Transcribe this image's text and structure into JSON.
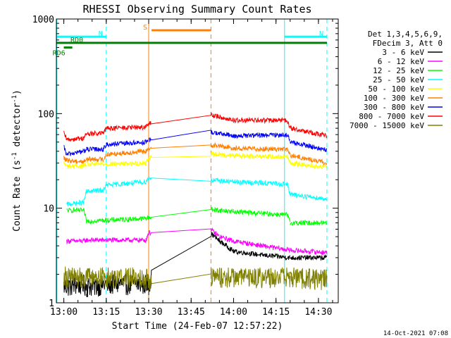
{
  "chart_data": {
    "type": "line",
    "title": "RHESSI Observing Summary Count Rates",
    "xlabel": "Start Time (24-Feb-07 12:57:22)",
    "ylabel": "Count Rate (s⁻¹ detector⁻¹)",
    "y_scale": "log",
    "ylim": [
      1,
      1000
    ],
    "xlim": [
      "12:57:22",
      "14:37:00"
    ],
    "x_ticks": [
      "13:00",
      "13:15",
      "13:30",
      "13:45",
      "14:00",
      "14:15",
      "14:30"
    ],
    "y_ticks": [
      "1",
      "10",
      "100",
      "1000"
    ],
    "grid": false,
    "legend_position": "right",
    "legend_header": [
      "Det 1,3,4,5,6,9,",
      "FDecim 3, Att 0"
    ],
    "series": [
      {
        "name": "3 - 6 keV",
        "color": "#000000",
        "points": [
          [
            "13:00",
            1.5
          ],
          [
            "13:07",
            1.6
          ],
          [
            "13:08",
            1.5
          ],
          [
            "13:17",
            1.6
          ],
          [
            "13:30",
            1.6
          ],
          [
            "13:50",
            6
          ],
          [
            "13:55",
            4.5
          ],
          [
            "14:00",
            3.5
          ],
          [
            "14:10",
            3.2
          ],
          [
            "14:20",
            3.0
          ],
          [
            "14:33",
            3.0
          ]
        ]
      },
      {
        "name": "6 - 12 keV",
        "color": "#ff00ff",
        "points": [
          [
            "13:01",
            4.5
          ],
          [
            "13:07",
            4.5
          ],
          [
            "13:08",
            4.6
          ],
          [
            "13:29",
            4.6
          ],
          [
            "13:30",
            5.5
          ],
          [
            "13:50",
            6.5
          ],
          [
            "13:55",
            5.0
          ],
          [
            "14:00",
            4.5
          ],
          [
            "14:10",
            4.0
          ],
          [
            "14:20",
            3.6
          ],
          [
            "14:33",
            3.4
          ]
        ]
      },
      {
        "name": "12 - 25 keV",
        "color": "#00ff00",
        "points": [
          [
            "13:01",
            9.5
          ],
          [
            "13:07",
            9.5
          ],
          [
            "13:08",
            7.3
          ],
          [
            "13:29",
            7.8
          ],
          [
            "13:30",
            8.0
          ],
          [
            "13:50",
            9.8
          ],
          [
            "14:00",
            9.2
          ],
          [
            "14:10",
            8.8
          ],
          [
            "14:19",
            8.5
          ],
          [
            "14:20",
            7.0
          ],
          [
            "14:33",
            7.0
          ]
        ]
      },
      {
        "name": "25 - 50 keV",
        "color": "#00ffff",
        "points": [
          [
            "13:01",
            11
          ],
          [
            "13:07",
            11.5
          ],
          [
            "13:08",
            15
          ],
          [
            "13:14",
            15.5
          ],
          [
            "13:15",
            17.5
          ],
          [
            "13:29",
            19
          ],
          [
            "13:30",
            21
          ],
          [
            "13:50",
            20
          ],
          [
            "14:00",
            19
          ],
          [
            "14:19",
            18
          ],
          [
            "14:20",
            14
          ],
          [
            "14:33",
            12.5
          ]
        ]
      },
      {
        "name": "50 - 100 keV",
        "color": "#ffff00",
        "points": [
          [
            "13:00",
            30
          ],
          [
            "13:01",
            28
          ],
          [
            "13:07",
            28
          ],
          [
            "13:08",
            29
          ],
          [
            "13:29",
            30
          ],
          [
            "13:30",
            34
          ],
          [
            "13:50",
            38
          ],
          [
            "14:00",
            36
          ],
          [
            "14:19",
            35
          ],
          [
            "14:20",
            30
          ],
          [
            "14:33",
            27
          ]
        ]
      },
      {
        "name": "100 - 300 keV",
        "color": "#ff8000",
        "points": [
          [
            "13:00",
            34
          ],
          [
            "13:01",
            32
          ],
          [
            "13:07",
            31
          ],
          [
            "13:08",
            33
          ],
          [
            "13:14",
            33
          ],
          [
            "13:15",
            37
          ],
          [
            "13:29",
            40
          ],
          [
            "13:30",
            42
          ],
          [
            "13:50",
            48
          ],
          [
            "14:00",
            43
          ],
          [
            "14:19",
            42
          ],
          [
            "14:20",
            36
          ],
          [
            "14:33",
            30
          ]
        ]
      },
      {
        "name": "300 - 800 keV",
        "color": "#0000ff",
        "points": [
          [
            "13:00",
            44
          ],
          [
            "13:01",
            37
          ],
          [
            "13:07",
            40
          ],
          [
            "13:08",
            42
          ],
          [
            "13:14",
            42
          ],
          [
            "13:15",
            47
          ],
          [
            "13:29",
            50
          ],
          [
            "13:30",
            52
          ],
          [
            "13:50",
            65
          ],
          [
            "14:00",
            58
          ],
          [
            "14:19",
            60
          ],
          [
            "14:20",
            50
          ],
          [
            "14:33",
            41
          ]
        ]
      },
      {
        "name": "800 - 7000 keV",
        "color": "#ff0000",
        "points": [
          [
            "13:00",
            62
          ],
          [
            "13:01",
            53
          ],
          [
            "13:07",
            55
          ],
          [
            "13:08",
            61
          ],
          [
            "13:14",
            62
          ],
          [
            "13:15",
            70
          ],
          [
            "13:29",
            72
          ],
          [
            "13:30",
            78
          ],
          [
            "13:50",
            100
          ],
          [
            "14:00",
            85
          ],
          [
            "14:19",
            85
          ],
          [
            "14:20",
            70
          ],
          [
            "14:33",
            58
          ]
        ]
      },
      {
        "name": "7000 - 15000 keV",
        "color": "#808000",
        "points": [
          [
            "13:00",
            2.0
          ],
          [
            "13:01",
            1.9
          ],
          [
            "13:29",
            1.9
          ],
          [
            "13:30",
            1.8
          ],
          [
            "13:50",
            1.9
          ],
          [
            "14:20",
            1.9
          ],
          [
            "14:33",
            1.8
          ]
        ]
      }
    ],
    "annotations": [
      {
        "label": "N",
        "color": "#00ffff",
        "start": "12:57:22",
        "end": "13:15",
        "level": 650
      },
      {
        "label": "N",
        "color": "#00ffff",
        "start": "14:18",
        "end": "14:33",
        "level": 650
      },
      {
        "label": "S",
        "color": "#ff8000",
        "start": "13:31",
        "end": "13:52",
        "level": 760
      },
      {
        "label": "RD0",
        "color": "#008000",
        "start": "12:57:22",
        "end": "14:33",
        "level": 560
      },
      {
        "label": "RD6",
        "color": "#008000",
        "start": "13:00",
        "end": "13:03",
        "level": 500
      }
    ],
    "vertical_markers": [
      {
        "time": "12:57:30",
        "color": "#00ffff",
        "style": "solid"
      },
      {
        "time": "13:15",
        "color": "#00ffff",
        "style": "dashed"
      },
      {
        "time": "13:30",
        "color": "#ff8000",
        "style": "solid"
      },
      {
        "time": "13:52",
        "color": "#ff8000",
        "style": "dashed"
      },
      {
        "time": "14:18",
        "color": "#00ffff",
        "style": "solid"
      },
      {
        "time": "14:33",
        "color": "#00ffff",
        "style": "dashed"
      }
    ],
    "data_gap": [
      "13:31",
      "13:52"
    ]
  },
  "footer": {
    "timestamp": "14-Oct-2021 07:08"
  }
}
